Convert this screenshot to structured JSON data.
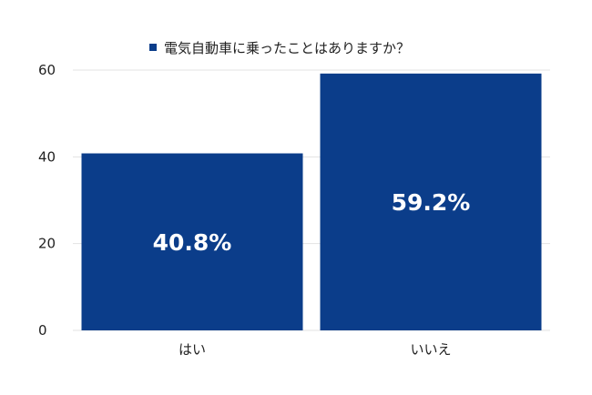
{
  "chart_data": {
    "type": "bar",
    "categories": [
      "はい",
      "いいえ"
    ],
    "series": [
      {
        "name": "電気自動車に乗ったことはありますか？",
        "values": [
          40.8,
          59.2
        ]
      }
    ],
    "data_labels": [
      "40.8%",
      "59.2%"
    ],
    "y_ticks": [
      "0",
      "20",
      "40",
      "60"
    ],
    "ylim": [
      0,
      60
    ],
    "grid": true,
    "legend_position": "top-center",
    "colors": {
      "bar": "#0b3d8a",
      "grid": "#e3e3e3",
      "label": "#ffffff"
    }
  }
}
